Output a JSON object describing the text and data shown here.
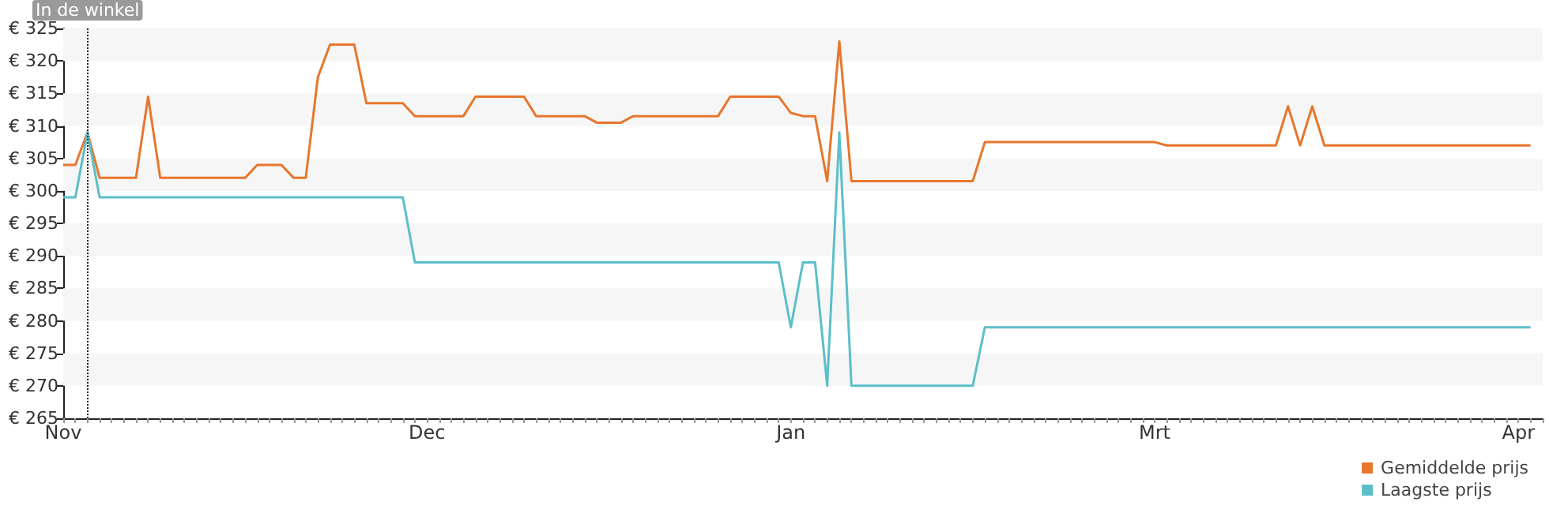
{
  "chart_data": {
    "type": "line",
    "categories": [
      "Nov",
      null,
      null,
      null,
      null,
      null,
      null,
      null,
      null,
      null,
      null,
      null,
      null,
      null,
      null,
      null,
      null,
      null,
      null,
      null,
      null,
      null,
      null,
      null,
      null,
      null,
      null,
      null,
      null,
      null,
      "Dec",
      null,
      null,
      null,
      null,
      null,
      null,
      null,
      null,
      null,
      null,
      null,
      null,
      null,
      null,
      null,
      null,
      null,
      null,
      null,
      null,
      null,
      null,
      null,
      null,
      null,
      null,
      null,
      null,
      null,
      "Jan",
      null,
      null,
      null,
      null,
      null,
      null,
      null,
      null,
      null,
      null,
      null,
      null,
      null,
      null,
      null,
      null,
      null,
      null,
      null,
      null,
      null,
      null,
      null,
      null,
      null,
      null,
      null,
      null,
      null,
      "Mrt",
      null,
      null,
      null,
      null,
      null,
      null,
      null,
      null,
      null,
      null,
      null,
      null,
      null,
      null,
      null,
      null,
      null,
      null,
      null,
      null,
      null,
      null,
      null,
      null,
      null,
      null,
      null,
      null,
      null,
      "Apr",
      null,
      null
    ],
    "series": [
      {
        "name": "Gemiddelde prijs",
        "color": "#e8762c",
        "values": [
          304,
          304,
          309,
          302,
          302,
          302,
          302,
          314.5,
          302,
          302,
          302,
          302,
          302,
          302,
          302,
          302,
          304,
          304,
          304,
          302,
          302,
          317.5,
          322.5,
          322.5,
          322.5,
          313.5,
          313.5,
          313.5,
          313.5,
          311.5,
          311.5,
          311.5,
          311.5,
          311.5,
          314.5,
          314.5,
          314.5,
          314.5,
          314.5,
          311.5,
          311.5,
          311.5,
          311.5,
          311.5,
          310.5,
          310.5,
          310.5,
          311.5,
          311.5,
          311.5,
          311.5,
          311.5,
          311.5,
          311.5,
          311.5,
          314.5,
          314.5,
          314.5,
          314.5,
          314.5,
          312,
          311.5,
          311.5,
          301.5,
          323,
          301.5,
          301.5,
          301.5,
          301.5,
          301.5,
          301.5,
          301.5,
          301.5,
          301.5,
          301.5,
          301.5,
          307.5,
          307.5,
          307.5,
          307.5,
          307.5,
          307.5,
          307.5,
          307.5,
          307.5,
          307.5,
          307.5,
          307.5,
          307.5,
          307.5,
          307.5,
          307,
          307,
          307,
          307,
          307,
          307,
          307,
          307,
          307,
          307,
          313,
          307,
          313,
          307,
          307,
          307,
          307,
          307,
          307,
          307,
          307,
          307,
          307,
          307,
          307,
          307,
          307,
          307,
          307,
          307,
          307,
          null
        ]
      },
      {
        "name": "Laagste prijs",
        "color": "#5bbfc9",
        "values": [
          299,
          299,
          309,
          299,
          299,
          299,
          299,
          299,
          299,
          299,
          299,
          299,
          299,
          299,
          299,
          299,
          299,
          299,
          299,
          299,
          299,
          299,
          299,
          299,
          299,
          299,
          299,
          299,
          299,
          289,
          289,
          289,
          289,
          289,
          289,
          289,
          289,
          289,
          289,
          289,
          289,
          289,
          289,
          289,
          289,
          289,
          289,
          289,
          289,
          289,
          289,
          289,
          289,
          289,
          289,
          289,
          289,
          289,
          289,
          289,
          279,
          289,
          289,
          270,
          309,
          270,
          270,
          270,
          270,
          270,
          270,
          270,
          270,
          270,
          270,
          270,
          279,
          279,
          279,
          279,
          279,
          279,
          279,
          279,
          279,
          279,
          279,
          279,
          279,
          279,
          279,
          279,
          279,
          279,
          279,
          279,
          279,
          279,
          279,
          279,
          279,
          279,
          279,
          279,
          279,
          279,
          279,
          279,
          279,
          279,
          279,
          279,
          279,
          279,
          279,
          279,
          279,
          279,
          279,
          279,
          279,
          279,
          null
        ]
      }
    ],
    "ylim": [
      265,
      325
    ],
    "yticks": [
      {
        "value": 265,
        "label": "€ 265"
      },
      {
        "value": 270,
        "label": "€ 270"
      },
      {
        "value": 275,
        "label": "€ 275"
      },
      {
        "value": 280,
        "label": "€ 280"
      },
      {
        "value": 285,
        "label": "€ 285"
      },
      {
        "value": 290,
        "label": "€ 290"
      },
      {
        "value": 295,
        "label": "€ 295"
      },
      {
        "value": 300,
        "label": "€ 300"
      },
      {
        "value": 305,
        "label": "€ 305"
      },
      {
        "value": 310,
        "label": "€ 310"
      },
      {
        "value": 315,
        "label": "€ 315"
      },
      {
        "value": 320,
        "label": "€ 320"
      },
      {
        "value": 325,
        "label": "€ 325"
      }
    ],
    "annotations": [
      "In de winkel"
    ],
    "bands": [
      {
        "axis": "y",
        "from": 270,
        "to": 275,
        "color": "#f6f6f6"
      },
      {
        "axis": "y",
        "from": 280,
        "to": 285,
        "color": "#f6f6f6"
      },
      {
        "axis": "y",
        "from": 290,
        "to": 295,
        "color": "#f6f6f6"
      },
      {
        "axis": "y",
        "from": 300,
        "to": 305,
        "color": "#f6f6f6"
      },
      {
        "axis": "y",
        "from": 310,
        "to": 315,
        "color": "#f6f6f6"
      },
      {
        "axis": "y",
        "from": 320,
        "to": 325,
        "color": "#f6f6f6"
      }
    ],
    "legend": "bottom right"
  }
}
